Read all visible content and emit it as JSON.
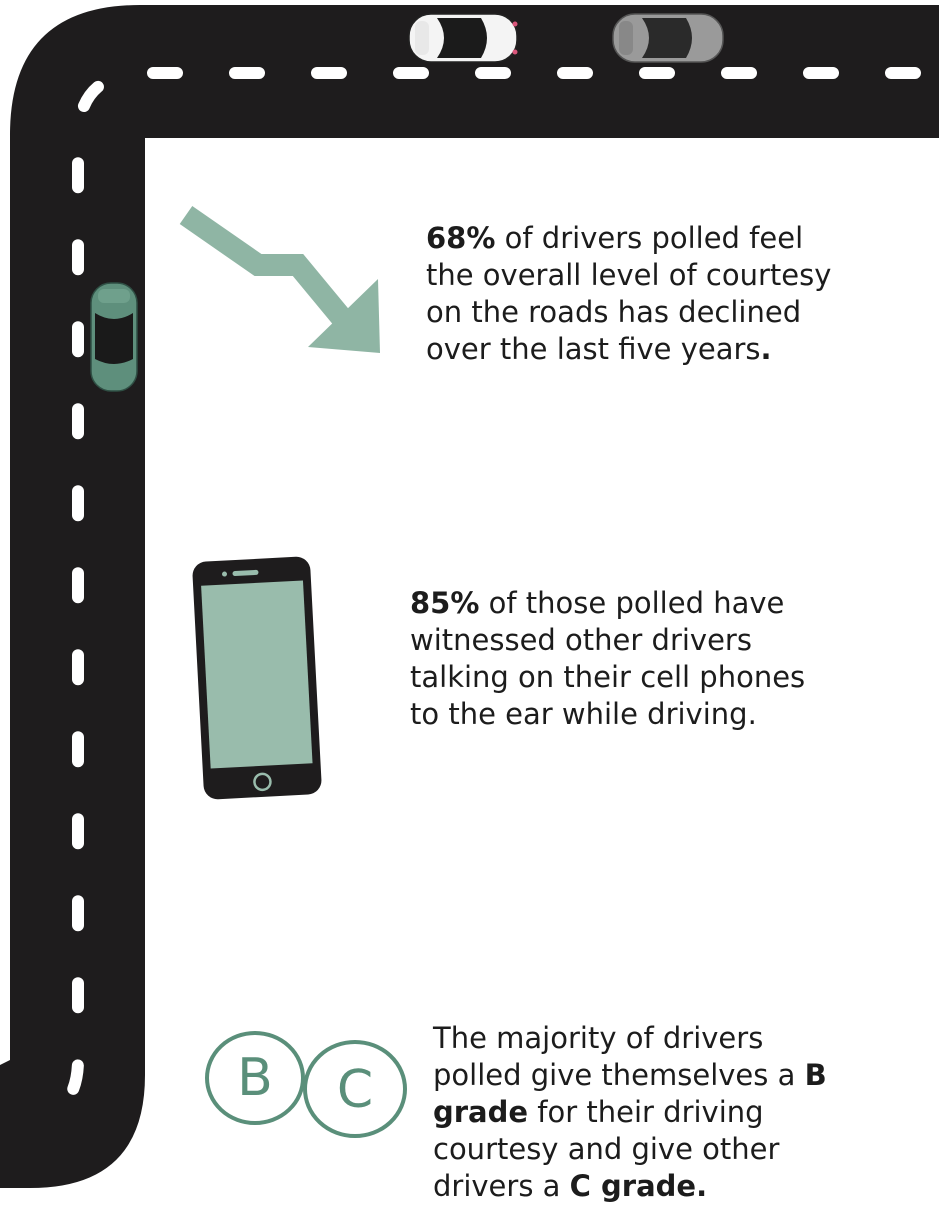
{
  "colors": {
    "road": "#1e1c1d",
    "lane_marking": "#ffffff",
    "accent": "#8fb5a4",
    "accent_dark": "#5a8f7a",
    "text": "#1c1c1c"
  },
  "icons": {
    "trend": "trend-down-arrow-icon",
    "phone": "smartphone-icon",
    "grades": "grade-circles-icon",
    "cars": "car-top-view-icon"
  },
  "grade_letters": [
    "B",
    "C"
  ],
  "stats": [
    {
      "highlight": "68%",
      "text": " of drivers polled feel the overall level of courtesy on the roads has declined over the last five years",
      "tail": "."
    },
    {
      "highlight": "85%",
      "text": " of those polled have witnessed other drivers talking on their cell phones to the ear while driving."
    },
    {
      "lead": "The majority of drivers polled give themselves a ",
      "highlight_1": "B grade",
      "middle": " for their driving courtesy and give other drivers a ",
      "highlight_2": "C grade",
      "tail": "."
    }
  ]
}
